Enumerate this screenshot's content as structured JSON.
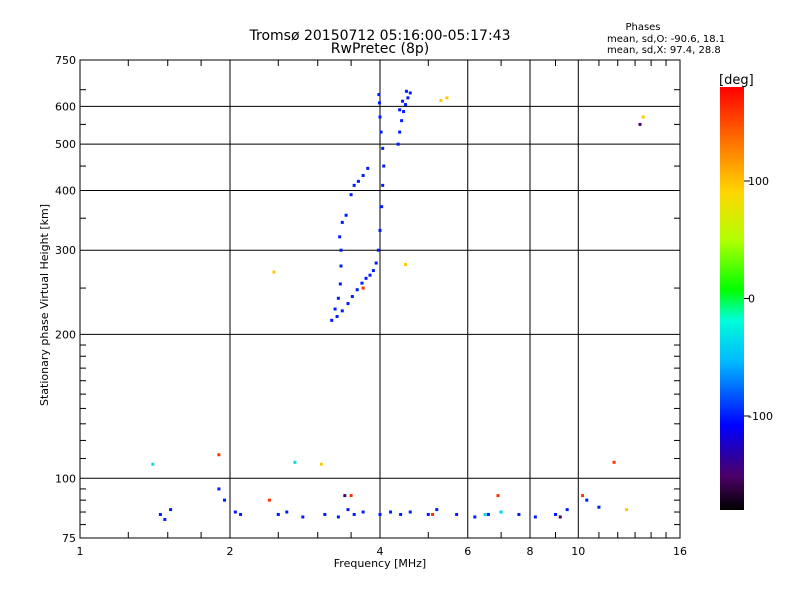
{
  "chart_data": {
    "type": "scatter",
    "title": "Tromsø 20150712 05:16:00-05:17:43",
    "subtitle": "RwPretec (8p)",
    "stats": {
      "heading": "Phases",
      "line_o": "mean, sd,O: -90.6, 18.1",
      "line_x": "mean, sd,X:  97.4, 28.8"
    },
    "xlabel": "Frequency [MHz]",
    "ylabel": "Stationary phase Virtual Height [km]",
    "x_scale": "log",
    "y_scale": "log",
    "xlim": [
      1,
      16
    ],
    "ylim": [
      75,
      750
    ],
    "x_ticks": [
      1,
      2,
      4,
      6,
      8,
      10,
      16
    ],
    "y_ticks": [
      75,
      100,
      200,
      300,
      400,
      500,
      600,
      750
    ],
    "grid": true,
    "colorbar": {
      "label": "[deg]",
      "range": [
        -180,
        180
      ],
      "ticks": [
        100,
        0,
        -100
      ]
    },
    "traces": [
      {
        "name": "",
        "phase": -100,
        "points": [
          [
            3.2,
            214
          ],
          [
            3.28,
            218
          ],
          [
            3.36,
            224
          ],
          [
            3.45,
            232
          ],
          [
            3.52,
            240
          ],
          [
            3.6,
            248
          ],
          [
            3.68,
            256
          ],
          [
            3.75,
            262
          ],
          [
            3.82,
            266
          ],
          [
            3.88,
            272
          ],
          [
            3.93,
            282
          ],
          [
            3.97,
            300
          ],
          [
            4.0,
            330
          ],
          [
            4.03,
            370
          ],
          [
            4.05,
            410
          ],
          [
            4.07,
            450
          ],
          [
            4.05,
            490
          ],
          [
            4.02,
            530
          ],
          [
            4.0,
            570
          ],
          [
            3.99,
            610
          ],
          [
            3.98,
            635
          ]
        ]
      },
      {
        "name": "",
        "phase": -100,
        "points": [
          [
            3.25,
            226
          ],
          [
            3.3,
            238
          ],
          [
            3.33,
            255
          ],
          [
            3.34,
            278
          ],
          [
            3.34,
            300
          ],
          [
            3.32,
            320
          ],
          [
            3.36,
            343
          ],
          [
            3.42,
            355
          ],
          [
            3.5,
            392
          ],
          [
            3.55,
            410
          ],
          [
            3.62,
            418
          ],
          [
            3.7,
            430
          ],
          [
            3.78,
            445
          ]
        ]
      },
      {
        "name": "",
        "phase": -100,
        "points": [
          [
            4.35,
            500
          ],
          [
            4.38,
            530
          ],
          [
            4.42,
            560
          ],
          [
            4.46,
            585
          ],
          [
            4.5,
            605
          ],
          [
            4.55,
            625
          ],
          [
            4.6,
            640
          ],
          [
            4.52,
            645
          ],
          [
            4.44,
            615
          ],
          [
            4.38,
            590
          ]
        ]
      },
      {
        "name": "",
        "phase": -100,
        "points": [
          [
            1.45,
            84
          ],
          [
            1.48,
            82
          ],
          [
            1.52,
            86
          ],
          [
            1.9,
            95
          ],
          [
            1.95,
            90
          ],
          [
            2.05,
            85
          ],
          [
            2.1,
            84
          ],
          [
            2.5,
            84
          ],
          [
            2.6,
            85
          ],
          [
            2.8,
            83
          ],
          [
            3.1,
            84
          ],
          [
            3.3,
            83
          ],
          [
            3.45,
            86
          ],
          [
            3.55,
            84
          ],
          [
            3.7,
            85
          ],
          [
            4.0,
            84
          ],
          [
            4.2,
            85
          ],
          [
            4.4,
            84
          ],
          [
            4.6,
            85
          ],
          [
            5.0,
            84
          ],
          [
            5.2,
            86
          ],
          [
            5.7,
            84
          ],
          [
            6.2,
            83
          ],
          [
            6.6,
            84
          ],
          [
            7.0,
            85
          ],
          [
            7.6,
            84
          ],
          [
            8.2,
            83
          ],
          [
            9.0,
            84
          ],
          [
            9.5,
            86
          ],
          [
            10.4,
            90
          ],
          [
            11.0,
            87
          ]
        ]
      },
      {
        "name": "",
        "phase": -35,
        "points": [
          [
            1.4,
            107
          ],
          [
            2.7,
            108
          ],
          [
            6.5,
            84
          ],
          [
            7.0,
            85
          ]
        ]
      },
      {
        "name": "",
        "phase": 95,
        "points": [
          [
            2.45,
            270
          ],
          [
            3.05,
            107
          ],
          [
            4.5,
            280
          ],
          [
            5.3,
            617
          ],
          [
            5.45,
            625
          ],
          [
            13.5,
            570
          ],
          [
            12.5,
            86
          ]
        ]
      },
      {
        "name": "",
        "phase": 160,
        "points": [
          [
            1.9,
            112
          ],
          [
            2.4,
            90
          ],
          [
            3.7,
            250
          ],
          [
            3.5,
            92
          ],
          [
            5.1,
            84
          ],
          [
            6.9,
            92
          ],
          [
            10.2,
            92
          ],
          [
            11.8,
            108
          ]
        ]
      },
      {
        "name": "",
        "phase": -150,
        "points": [
          [
            13.3,
            550
          ],
          [
            3.4,
            92
          ],
          [
            9.2,
            83
          ]
        ]
      }
    ]
  }
}
